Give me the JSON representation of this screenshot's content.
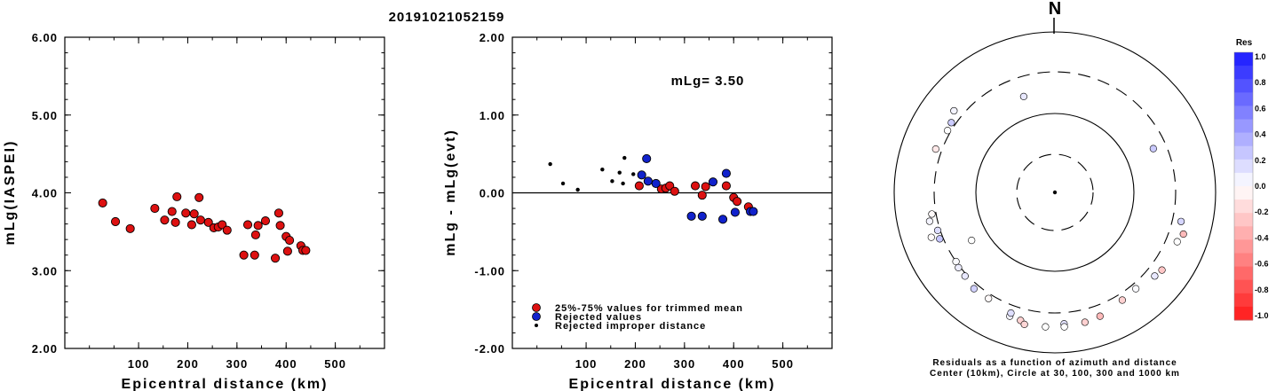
{
  "figure_title": "20191021052159",
  "chart_data": [
    {
      "type": "scatter",
      "id": "left",
      "ylabel": "mLg(IASPEI)",
      "xlabel": "Epicentral distance (km)",
      "xlim": [
        -50,
        600
      ],
      "ylim": [
        2.0,
        6.0
      ],
      "x_ticks": [
        "100",
        "200",
        "300",
        "400",
        "500"
      ],
      "y_ticks": [
        "2.00",
        "3.00",
        "4.00",
        "5.00",
        "6.00"
      ],
      "series": [
        {
          "color": "#dd1111",
          "points": [
            [
              27,
              3.87
            ],
            [
              53,
              3.63
            ],
            [
              83,
              3.54
            ],
            [
              133,
              3.8
            ],
            [
              153,
              3.65
            ],
            [
              168,
              3.76
            ],
            [
              175,
              3.62
            ],
            [
              178,
              3.95
            ],
            [
              196,
              3.74
            ],
            [
              208,
              3.59
            ],
            [
              213,
              3.73
            ],
            [
              223,
              3.94
            ],
            [
              226,
              3.65
            ],
            [
              242,
              3.62
            ],
            [
              253,
              3.55
            ],
            [
              262,
              3.56
            ],
            [
              270,
              3.59
            ],
            [
              280,
              3.52
            ],
            [
              314,
              3.2
            ],
            [
              322,
              3.59
            ],
            [
              336,
              3.2
            ],
            [
              338,
              3.46
            ],
            [
              343,
              3.58
            ],
            [
              358,
              3.64
            ],
            [
              378,
              3.16
            ],
            [
              385,
              3.74
            ],
            [
              388,
              3.58
            ],
            [
              400,
              3.44
            ],
            [
              403,
              3.25
            ],
            [
              407,
              3.39
            ],
            [
              430,
              3.32
            ],
            [
              434,
              3.26
            ],
            [
              440,
              3.26
            ]
          ]
        }
      ]
    },
    {
      "type": "scatter",
      "id": "middle",
      "ylabel": "mLg - mLg(evt)",
      "xlabel": "Epicentral distance (km)",
      "xlim": [
        -50,
        600
      ],
      "ylim": [
        -2.0,
        2.0
      ],
      "x_ticks": [
        "100",
        "200",
        "300",
        "400",
        "500"
      ],
      "y_ticks": [
        "-2.00",
        "-1.00",
        "0.00",
        "1.00",
        "2.00"
      ],
      "annotation": "mLg= 3.50",
      "legend": [
        {
          "label": "25%-75% values for trimmed mean",
          "color": "#dd1111"
        },
        {
          "label": "Rejected values",
          "color": "#1122cc"
        },
        {
          "label": "Rejected improper distance",
          "color": "#000000"
        }
      ],
      "series": [
        {
          "name": "25%-75% values for trimmed mean",
          "color": "#dd1111",
          "points": [
            [
              208,
              0.09
            ],
            [
              253,
              0.05
            ],
            [
              262,
              0.06
            ],
            [
              270,
              0.09
            ],
            [
              280,
              0.02
            ],
            [
              322,
              0.09
            ],
            [
              336,
              -0.03
            ],
            [
              343,
              0.08
            ],
            [
              385,
              0.09
            ],
            [
              400,
              -0.06
            ],
            [
              407,
              -0.11
            ],
            [
              430,
              -0.18
            ]
          ]
        },
        {
          "name": "Rejected values",
          "color": "#1122cc",
          "points": [
            [
              213,
              0.23
            ],
            [
              223,
              0.44
            ],
            [
              226,
              0.15
            ],
            [
              242,
              0.12
            ],
            [
              314,
              -0.3
            ],
            [
              336,
              -0.3
            ],
            [
              358,
              0.14
            ],
            [
              378,
              -0.34
            ],
            [
              385,
              0.25
            ],
            [
              403,
              -0.25
            ],
            [
              434,
              -0.24
            ],
            [
              440,
              -0.24
            ]
          ]
        },
        {
          "name": "Rejected improper distance",
          "color": "#000000",
          "points": [
            [
              27,
              0.37
            ],
            [
              53,
              0.12
            ],
            [
              83,
              0.04
            ],
            [
              133,
              0.3
            ],
            [
              153,
              0.15
            ],
            [
              168,
              0.26
            ],
            [
              175,
              0.12
            ],
            [
              178,
              0.45
            ],
            [
              196,
              0.24
            ]
          ]
        }
      ]
    },
    {
      "type": "polar-scatter",
      "id": "azimuth",
      "north_label": "N",
      "caption_line1": "Residuals as a function of azimuth and distance",
      "caption_line2": "Center (10km), Circle at 30, 100, 300 and 1000 km",
      "rings_km": [
        30,
        100,
        300,
        1000
      ],
      "points": [
        {
          "az": 0,
          "dist": 0,
          "res": null
        },
        {
          "az": 342,
          "dist": 178,
          "res": 0.1
        },
        {
          "az": 66,
          "dist": 213,
          "res": 0.23
        },
        {
          "az": 240,
          "dist": 157,
          "res": 0.01
        },
        {
          "az": 304,
          "dist": 340,
          "res": 0.22
        },
        {
          "az": 300,
          "dist": 330,
          "res": 0.0
        },
        {
          "az": 309,
          "dist": 395,
          "res": 0.05
        },
        {
          "az": 290,
          "dist": 360,
          "res": -0.1
        },
        {
          "az": 260,
          "dist": 340,
          "res": -0.02
        },
        {
          "az": 257,
          "dist": 380,
          "res": 0.05
        },
        {
          "az": 252,
          "dist": 323,
          "res": 0.15
        },
        {
          "az": 248,
          "dist": 333,
          "res": 0.25
        },
        {
          "az": 250,
          "dist": 415,
          "res": -0.02
        },
        {
          "az": 235,
          "dist": 300,
          "res": 0.02
        },
        {
          "az": 232,
          "dist": 315,
          "res": 0.08
        },
        {
          "az": 227,
          "dist": 320,
          "res": 0.1
        },
        {
          "az": 220,
          "dist": 350,
          "res": 0.2
        },
        {
          "az": 212,
          "dist": 344,
          "res": -0.02
        },
        {
          "az": 200,
          "dist": 420,
          "res": 0.05
        },
        {
          "az": 200,
          "dist": 380,
          "res": 0.14
        },
        {
          "az": 195,
          "dist": 430,
          "res": -0.2
        },
        {
          "az": 193,
          "dist": 470,
          "res": -0.18
        },
        {
          "az": 184,
          "dist": 460,
          "res": 0.0
        },
        {
          "az": 176,
          "dist": 420,
          "res": 0.12
        },
        {
          "az": 176,
          "dist": 460,
          "res": 0.0
        },
        {
          "az": 167,
          "dist": 440,
          "res": -0.2
        },
        {
          "az": 160,
          "dist": 420,
          "res": -0.3
        },
        {
          "az": 148,
          "dist": 364,
          "res": -0.2
        },
        {
          "az": 140,
          "dist": 350,
          "res": 0.02
        },
        {
          "az": 130,
          "dist": 400,
          "res": 0.1
        },
        {
          "az": 126,
          "dist": 425,
          "res": -0.25
        },
        {
          "az": 112,
          "dist": 420,
          "res": 0.0
        },
        {
          "az": 108,
          "dist": 462,
          "res": -0.3
        },
        {
          "az": 103,
          "dist": 390,
          "res": 0.18
        }
      ]
    }
  ],
  "colorbar": {
    "title": "Res",
    "ticks": [
      "1.0",
      "0.8",
      "0.6",
      "0.4",
      "0.2",
      "0.0",
      "-0.2",
      "-0.4",
      "-0.6",
      "-0.8",
      "-1.0"
    ]
  }
}
